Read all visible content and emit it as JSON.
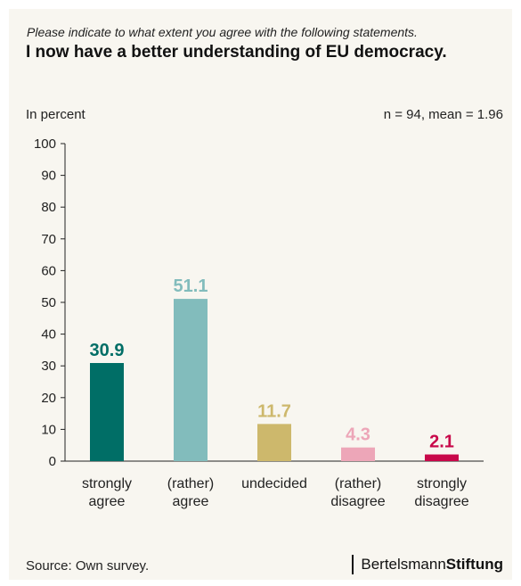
{
  "chart_data": {
    "type": "bar",
    "subtitle": "Please indicate to what extent you agree with the following statements.",
    "title": "I now have a better understanding of EU democracy.",
    "ylabel": "In percent",
    "stats": "n = 94, mean = 1.96",
    "ylim": [
      0,
      100
    ],
    "yticks": [
      0,
      10,
      20,
      30,
      40,
      50,
      60,
      70,
      80,
      90,
      100
    ],
    "categories": [
      [
        "strongly",
        "agree"
      ],
      [
        "(rather)",
        "agree"
      ],
      [
        "undecided"
      ],
      [
        "(rather)",
        "disagree"
      ],
      [
        "strongly",
        "disagree"
      ]
    ],
    "values": [
      30.9,
      51.1,
      11.7,
      4.3,
      2.1
    ],
    "value_labels": [
      "30.9",
      "51.1",
      "11.7",
      "4.3",
      "2.1"
    ],
    "colors": [
      "#006e66",
      "#82bcbc",
      "#cdb86c",
      "#eda6b8",
      "#c8084a"
    ],
    "grid": false
  },
  "footer": {
    "source": "Source: Own survey.",
    "logo_regular": "Bertelsmann",
    "logo_bold": "Stiftung"
  }
}
